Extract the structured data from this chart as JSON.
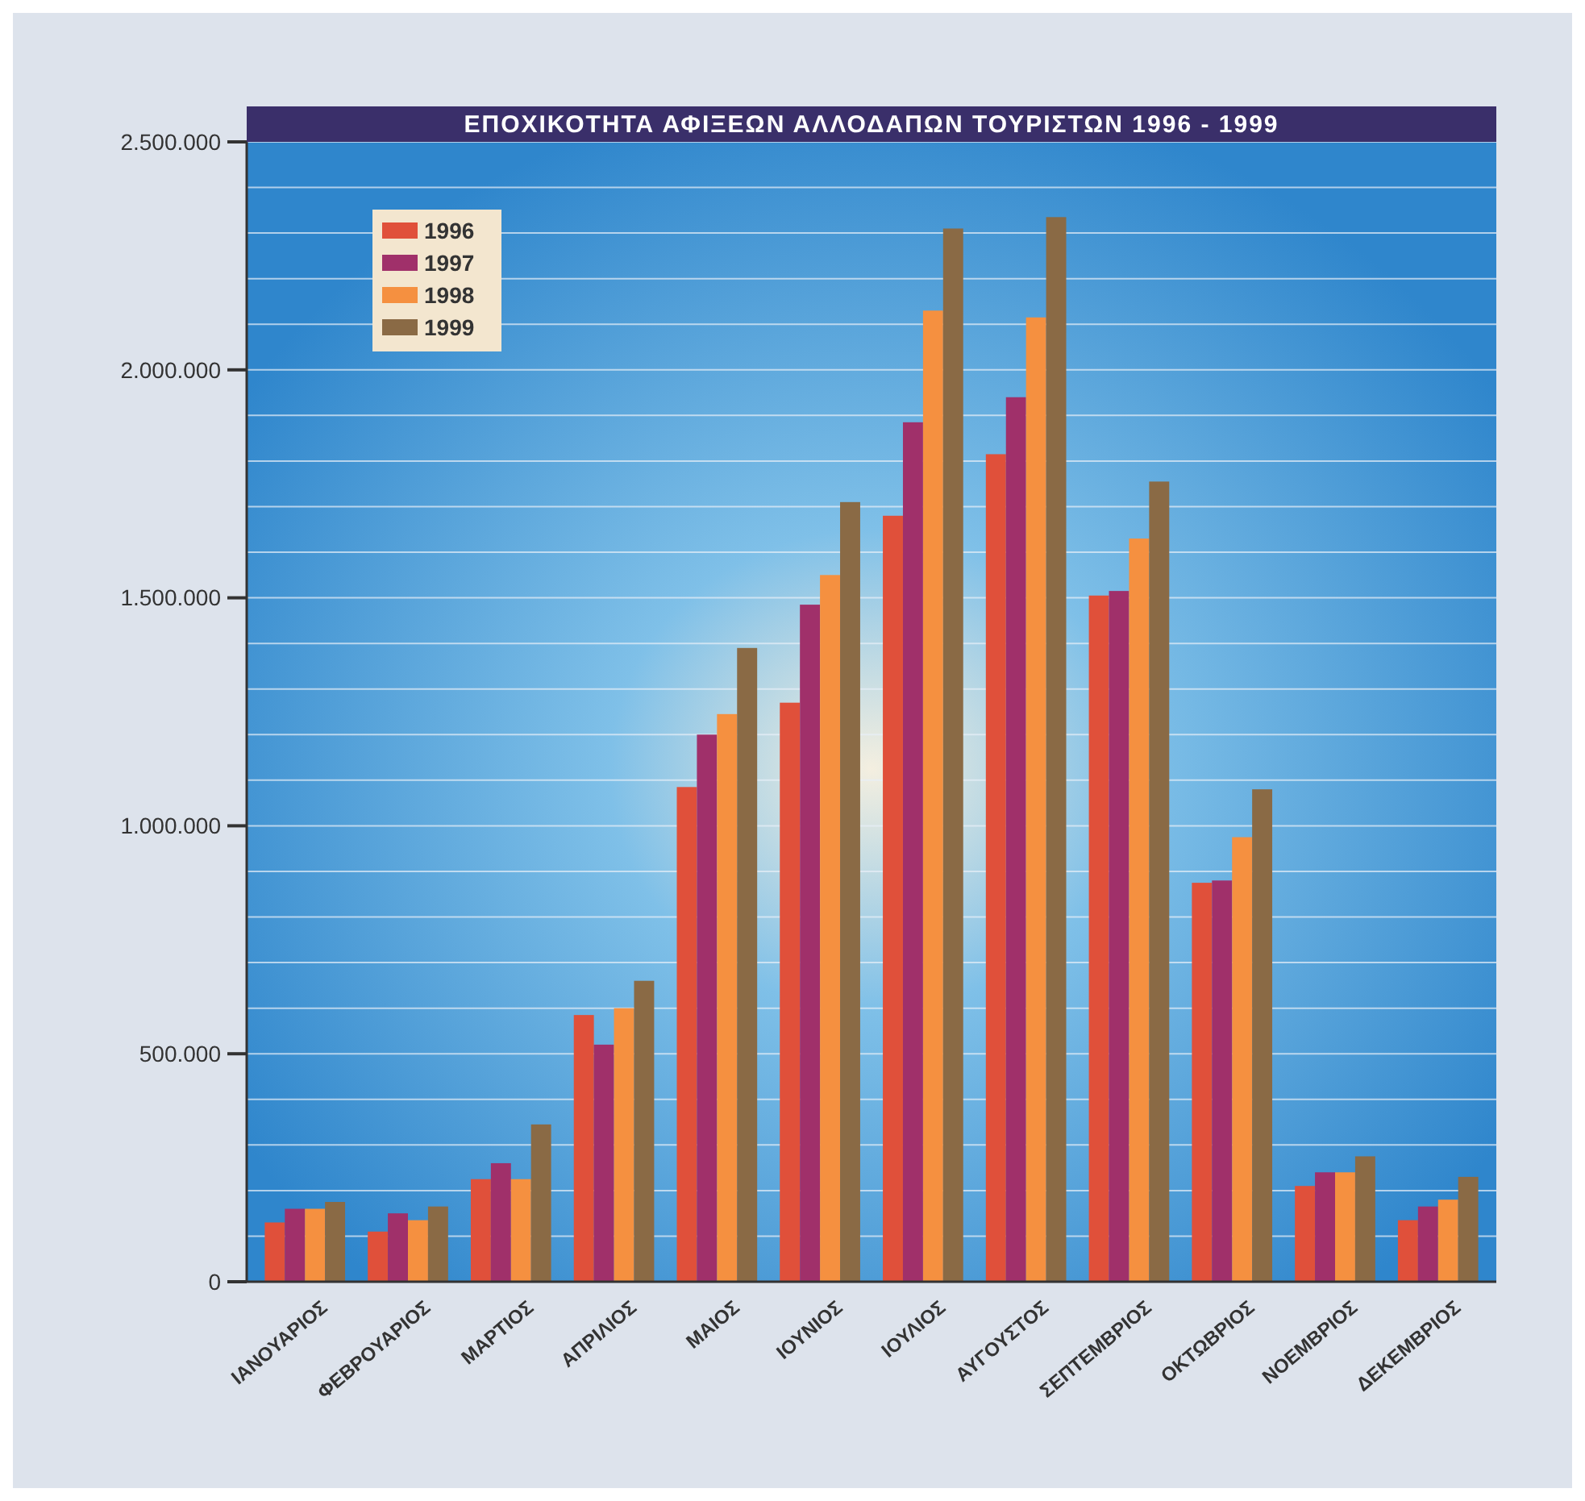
{
  "chart_data": {
    "type": "bar",
    "title": "ΕΠΟΧΙΚΟΤΗΤΑ ΑΦΙΞΕΩΝ ΑΛΛΟΔΑΠΩΝ ΤΟΥΡΙΣΤΩΝ 1996 - 1999",
    "categories": [
      "ΙΑΝΟΥΑΡΙΟΣ",
      "ΦΕΒΡΟΥΑΡΙΟΣ",
      "ΜΑΡΤΙΟΣ",
      "ΑΠΡΙΛΙΟΣ",
      "ΜΑΙΟΣ",
      "ΙΟΥΝΙΟΣ",
      "ΙΟΥΛΙΟΣ",
      "ΑΥΓΟΥΣΤΟΣ",
      "ΣΕΠΤΕΜΒΡΙΟΣ",
      "ΟΚΤΩΒΡΙΟΣ",
      "ΝΟΕΜΒΡΙΟΣ",
      "ΔΕΚΕΜΒΡΙΟΣ"
    ],
    "series": [
      {
        "name": "1996",
        "color": "#e0503a",
        "values": [
          130000,
          110000,
          225000,
          585000,
          1085000,
          1270000,
          1680000,
          1815000,
          1505000,
          875000,
          210000,
          135000
        ]
      },
      {
        "name": "1997",
        "color": "#a0306a",
        "values": [
          160000,
          150000,
          260000,
          520000,
          1200000,
          1485000,
          1885000,
          1940000,
          1515000,
          880000,
          240000,
          165000
        ]
      },
      {
        "name": "1998",
        "color": "#f59040",
        "values": [
          160000,
          135000,
          225000,
          600000,
          1245000,
          1550000,
          2130000,
          2115000,
          1630000,
          975000,
          240000,
          180000
        ]
      },
      {
        "name": "1999",
        "color": "#8a6a45",
        "values": [
          175000,
          165000,
          345000,
          660000,
          1390000,
          1710000,
          2310000,
          2335000,
          1755000,
          1080000,
          275000,
          230000
        ]
      }
    ],
    "ylim": [
      0,
      2500000
    ],
    "yticks": [
      {
        "value": 0,
        "label": "0"
      },
      {
        "value": 100000,
        "label": null
      },
      {
        "value": 200000,
        "label": null
      },
      {
        "value": 300000,
        "label": null
      },
      {
        "value": 400000,
        "label": null
      },
      {
        "value": 500000,
        "label": "500.000"
      },
      {
        "value": 600000,
        "label": null
      },
      {
        "value": 700000,
        "label": null
      },
      {
        "value": 800000,
        "label": null
      },
      {
        "value": 900000,
        "label": null
      },
      {
        "value": 1000000,
        "label": "1.000.000"
      },
      {
        "value": 1100000,
        "label": null
      },
      {
        "value": 1200000,
        "label": null
      },
      {
        "value": 1300000,
        "label": null
      },
      {
        "value": 1400000,
        "label": null
      },
      {
        "value": 1500000,
        "label": "1.500.000"
      },
      {
        "value": 1600000,
        "label": null
      },
      {
        "value": 1700000,
        "label": null
      },
      {
        "value": 1800000,
        "label": null
      },
      {
        "value": 1900000,
        "label": null
      },
      {
        "value": 2000000,
        "label": "2.000.000"
      },
      {
        "value": 2100000,
        "label": null
      },
      {
        "value": 2200000,
        "label": null
      },
      {
        "value": 2300000,
        "label": null
      },
      {
        "value": 2400000,
        "label": null
      },
      {
        "value": 2500000,
        "label": "2.500.000"
      }
    ],
    "grid": "y",
    "legend": "top left"
  }
}
